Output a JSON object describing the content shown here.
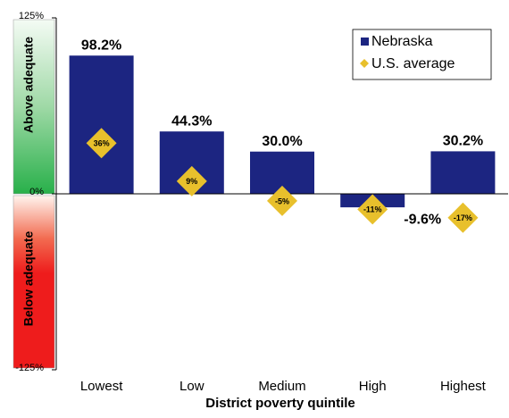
{
  "chart_data": {
    "type": "bar",
    "categories": [
      "Lowest",
      "Low",
      "Medium",
      "High",
      "Highest"
    ],
    "series": [
      {
        "name": "Nebraska",
        "color": "#1c2581",
        "values": [
          98.2,
          44.3,
          30.0,
          -9.6,
          30.2
        ],
        "value_labels": [
          "98.2%",
          "44.3%",
          "30.0%",
          "-9.6%",
          "30.2%"
        ]
      },
      {
        "name": "U.S. average",
        "color": "#e8c02c",
        "marker": "diamond",
        "values": [
          36,
          9,
          -5,
          -11,
          -17
        ],
        "value_labels": [
          "36%",
          "9%",
          "-5%",
          "-11%",
          "-17%"
        ]
      }
    ],
    "ylim": [
      -125,
      125
    ],
    "yticks": [
      {
        "value": -125,
        "label": "-125%"
      },
      {
        "value": 0,
        "label": "0%"
      },
      {
        "value": 125,
        "label": "125%"
      }
    ],
    "xlabel": "District poverty quintile",
    "annotations": [
      "Above adequate",
      "Below adequate"
    ],
    "legend": "top-right"
  }
}
